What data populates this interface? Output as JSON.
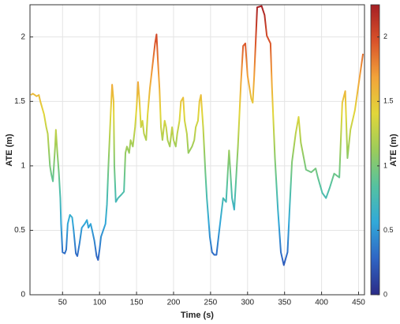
{
  "chart_data": {
    "type": "line",
    "xlabel": "Time (s)",
    "ylabel": "ATE (m)",
    "colorbar_label": "ATE (m)",
    "x": [
      7,
      10,
      15,
      18,
      20,
      25,
      28,
      30,
      33,
      35,
      37,
      40,
      41,
      43,
      45,
      47,
      48,
      50,
      53,
      55,
      57,
      60,
      63,
      65,
      68,
      70,
      73,
      76,
      80,
      83,
      85,
      88,
      90,
      93,
      96,
      98,
      100,
      102,
      105,
      108,
      110,
      112,
      115,
      117,
      119,
      120,
      122,
      125,
      130,
      133,
      135,
      137,
      140,
      142,
      145,
      148,
      150,
      152,
      154,
      156,
      158,
      160,
      163,
      165,
      168,
      170,
      173,
      175,
      177,
      179,
      181,
      183,
      185,
      188,
      190,
      192,
      195,
      198,
      200,
      203,
      205,
      208,
      210,
      213,
      215,
      218,
      220,
      225,
      228,
      230,
      233,
      235,
      237,
      240,
      243,
      245,
      249,
      252,
      255,
      258,
      262,
      267,
      271,
      275,
      279,
      282,
      284,
      287,
      291,
      294,
      297,
      300,
      305,
      307,
      309,
      313,
      319,
      323,
      326,
      331,
      333,
      337,
      341,
      345,
      349,
      354,
      357,
      360,
      365,
      369,
      372,
      376,
      379,
      386,
      392,
      395,
      401,
      406,
      411,
      417,
      424,
      428,
      432,
      435,
      439,
      445,
      451,
      456
    ],
    "values": [
      1.55,
      1.56,
      1.54,
      1.55,
      1.5,
      1.4,
      1.3,
      1.25,
      1.0,
      0.93,
      0.88,
      1.15,
      1.28,
      1.1,
      0.95,
      0.75,
      0.55,
      0.33,
      0.32,
      0.35,
      0.55,
      0.62,
      0.6,
      0.5,
      0.32,
      0.3,
      0.4,
      0.52,
      0.55,
      0.58,
      0.52,
      0.55,
      0.5,
      0.42,
      0.3,
      0.27,
      0.35,
      0.45,
      0.5,
      0.55,
      0.7,
      1.0,
      1.4,
      1.63,
      1.5,
      1.0,
      0.72,
      0.75,
      0.78,
      0.8,
      1.1,
      1.15,
      1.1,
      1.2,
      1.15,
      1.3,
      1.45,
      1.65,
      1.5,
      1.3,
      1.35,
      1.25,
      1.2,
      1.4,
      1.6,
      1.7,
      1.85,
      1.95,
      2.02,
      1.8,
      1.6,
      1.3,
      1.2,
      1.35,
      1.3,
      1.2,
      1.15,
      1.3,
      1.2,
      1.15,
      1.25,
      1.35,
      1.5,
      1.53,
      1.35,
      1.25,
      1.1,
      1.15,
      1.2,
      1.3,
      1.35,
      1.5,
      1.55,
      1.3,
      0.95,
      0.75,
      0.45,
      0.33,
      0.31,
      0.31,
      0.51,
      0.75,
      0.72,
      1.12,
      0.75,
      0.66,
      0.85,
      1.15,
      1.64,
      1.93,
      1.95,
      1.7,
      1.52,
      1.49,
      1.7,
      2.23,
      2.24,
      2.17,
      2.01,
      1.95,
      1.61,
      1.06,
      0.66,
      0.33,
      0.23,
      0.33,
      0.69,
      1.03,
      1.25,
      1.38,
      1.18,
      1.06,
      0.97,
      0.95,
      0.98,
      0.91,
      0.79,
      0.75,
      0.83,
      0.94,
      0.91,
      1.49,
      1.58,
      1.06,
      1.28,
      1.43,
      1.67,
      1.87
    ],
    "xlim": [
      6,
      458
    ],
    "xticks": [
      50,
      100,
      150,
      200,
      250,
      300,
      350,
      400,
      450
    ],
    "ylim": [
      0,
      2.25
    ],
    "yticks": [
      0,
      0.5,
      1,
      1.5,
      2
    ],
    "clim": [
      0,
      2.25
    ],
    "cticks": [
      0,
      0.5,
      1,
      1.5,
      2
    ],
    "colormap": [
      "#2b2c87",
      "#2f65c4",
      "#31a9d9",
      "#55c2a0",
      "#9ccc5a",
      "#e2d63a",
      "#f2a33a",
      "#d9522a",
      "#a51f24"
    ],
    "grid": true
  }
}
